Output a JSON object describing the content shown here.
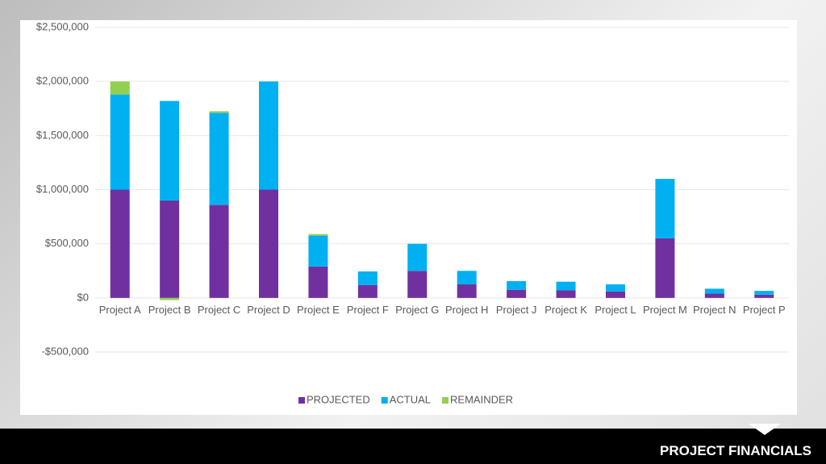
{
  "chart_data": {
    "type": "stacked-bar",
    "categories": [
      "Project A",
      "Project B",
      "Project C",
      "Project D",
      "Project E",
      "Project F",
      "Project G",
      "Project H",
      "Project J",
      "Project K",
      "Project L",
      "Project M",
      "Project N",
      "Project P"
    ],
    "series": [
      {
        "name": "PROJECTED",
        "color": "#7030a0",
        "values": [
          1000000,
          900000,
          860000,
          1000000,
          290000,
          120000,
          250000,
          125000,
          75000,
          70000,
          60000,
          550000,
          40000,
          30000
        ]
      },
      {
        "name": "ACTUAL",
        "color": "#00b0f0",
        "values": [
          880000,
          920000,
          850000,
          1000000,
          285000,
          125000,
          250000,
          125000,
          80000,
          80000,
          65000,
          550000,
          45000,
          35000
        ]
      },
      {
        "name": "REMAINDER",
        "color": "#92d050",
        "values": [
          120000,
          -20000,
          15000,
          0,
          15000,
          0,
          0,
          0,
          0,
          0,
          0,
          0,
          0,
          0
        ]
      }
    ],
    "ylim": [
      -500000,
      2500000
    ],
    "yticks": [
      {
        "value": -500000,
        "label": "-$500,000"
      },
      {
        "value": 0,
        "label": "$0"
      },
      {
        "value": 500000,
        "label": "$500,000"
      },
      {
        "value": 1000000,
        "label": "$1,000,000"
      },
      {
        "value": 1500000,
        "label": "$1,500,000"
      },
      {
        "value": 2000000,
        "label": "$2,000,000"
      },
      {
        "value": 2500000,
        "label": "$2,500,000"
      }
    ],
    "grid": true,
    "legend": "bottom"
  },
  "slide_title": "PROJECT FINANCIALS"
}
